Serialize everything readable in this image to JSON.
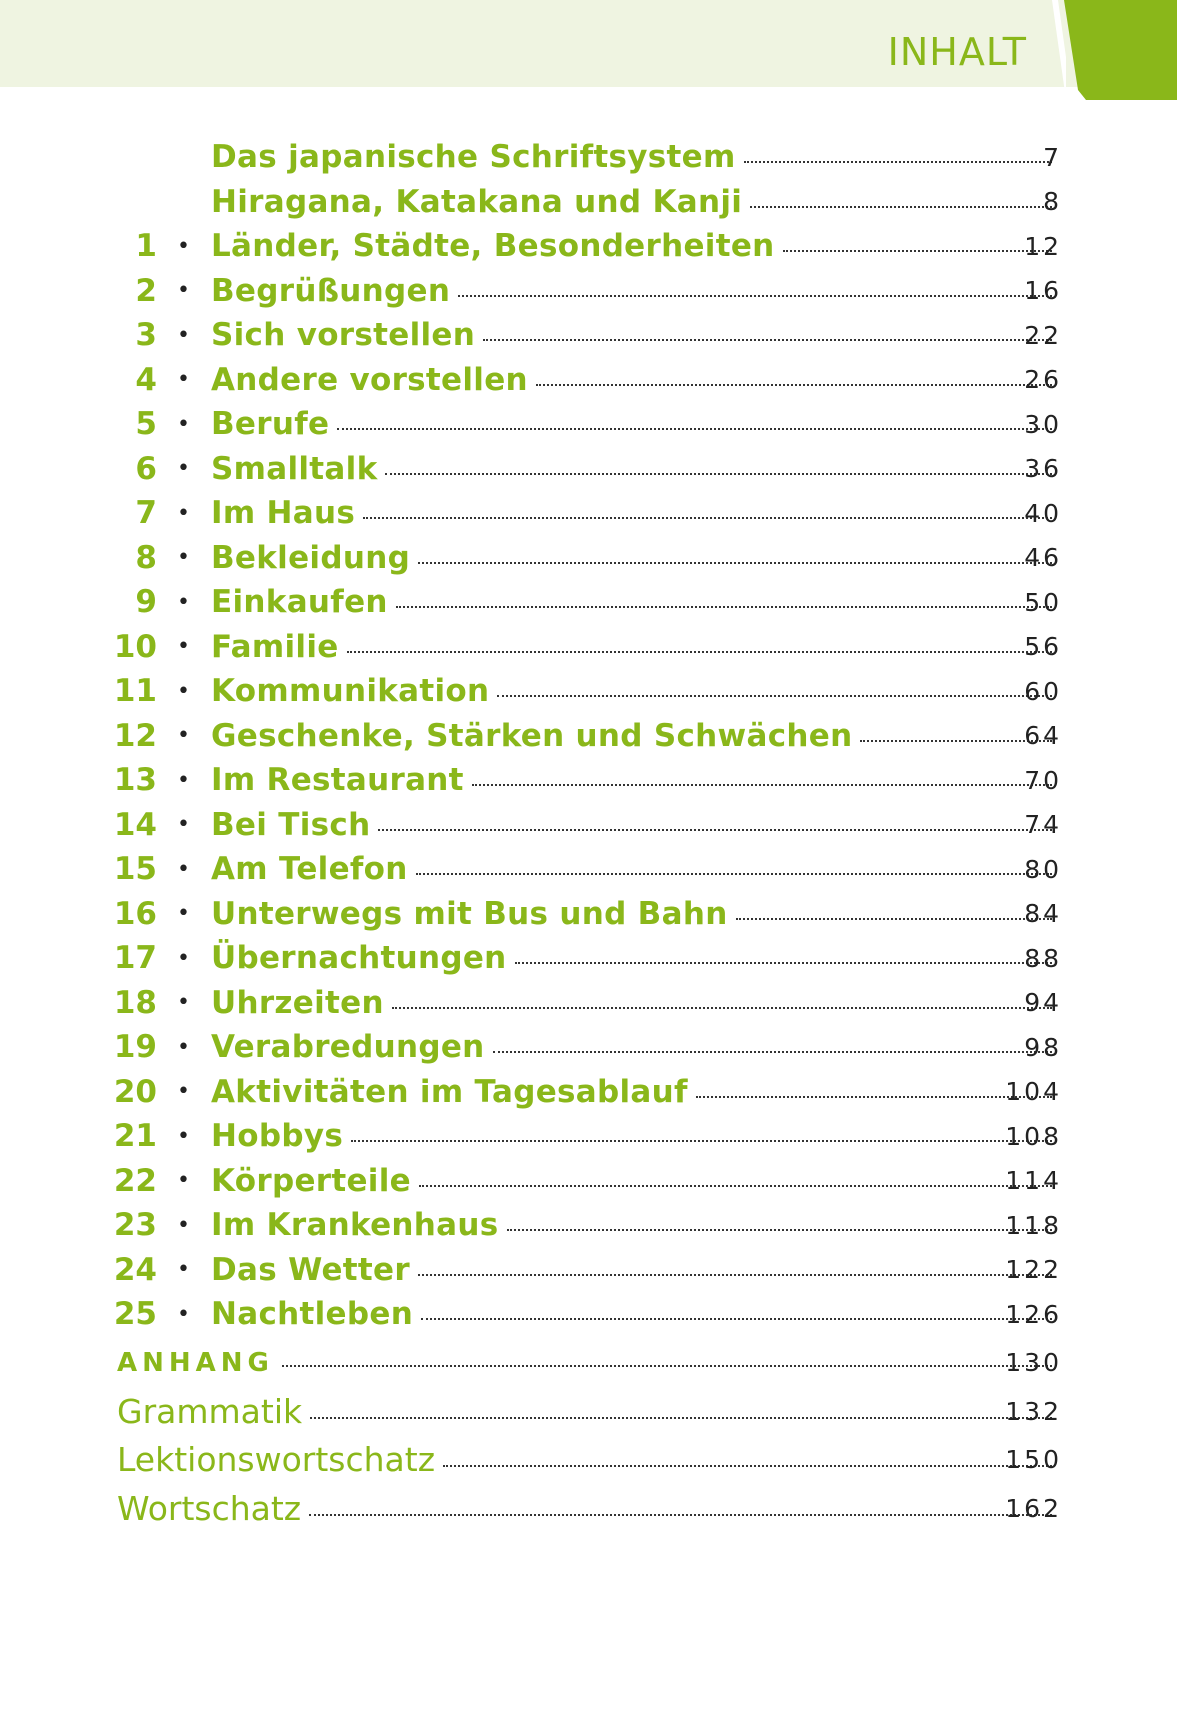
{
  "header": {
    "title": "INHALT",
    "accent": "#8ab71a",
    "band": "#eff4e1"
  },
  "intro": [
    {
      "title": "Das japanische Schriftsystem",
      "page": "7"
    },
    {
      "title": "Hiragana, Katakana und Kanji",
      "page": "8"
    }
  ],
  "lessons": [
    {
      "num": "1",
      "title": "Länder, Städte, Besonderheiten",
      "page": "12"
    },
    {
      "num": "2",
      "title": "Begrüßungen",
      "page": "16"
    },
    {
      "num": "3",
      "title": "Sich vorstellen",
      "page": "22"
    },
    {
      "num": "4",
      "title": "Andere vorstellen",
      "page": "26"
    },
    {
      "num": "5",
      "title": "Berufe",
      "page": "30"
    },
    {
      "num": "6",
      "title": "Smalltalk",
      "page": "36"
    },
    {
      "num": "7",
      "title": "Im Haus",
      "page": "40"
    },
    {
      "num": "8",
      "title": "Bekleidung",
      "page": "46"
    },
    {
      "num": "9",
      "title": "Einkaufen",
      "page": "50"
    },
    {
      "num": "10",
      "title": "Familie",
      "page": "56"
    },
    {
      "num": "11",
      "title": "Kommunikation",
      "page": "60"
    },
    {
      "num": "12",
      "title": "Geschenke, Stärken und Schwächen",
      "page": "64"
    },
    {
      "num": "13",
      "title": "Im Restaurant",
      "page": "70"
    },
    {
      "num": "14",
      "title": "Bei Tisch",
      "page": "74"
    },
    {
      "num": "15",
      "title": "Am Telefon",
      "page": "80"
    },
    {
      "num": "16",
      "title": "Unterwegs mit Bus und Bahn",
      "page": "84"
    },
    {
      "num": "17",
      "title": "Übernachtungen",
      "page": "88"
    },
    {
      "num": "18",
      "title": "Uhrzeiten",
      "page": "94"
    },
    {
      "num": "19",
      "title": "Verabredungen",
      "page": "98"
    },
    {
      "num": "20",
      "title": "Aktivitäten im Tagesablauf",
      "page": "104"
    },
    {
      "num": "21",
      "title": "Hobbys",
      "page": "108"
    },
    {
      "num": "22",
      "title": "Körperteile",
      "page": "114"
    },
    {
      "num": "23",
      "title": "Im Krankenhaus",
      "page": "118"
    },
    {
      "num": "24",
      "title": "Das Wetter",
      "page": "122"
    },
    {
      "num": "25",
      "title": "Nachtleben",
      "page": "126"
    }
  ],
  "bullet": "•",
  "appendix": [
    {
      "title": "ANHANG",
      "page": "130"
    },
    {
      "title": "Grammatik",
      "page": "132"
    },
    {
      "title": "Lektionswortschatz",
      "page": "150"
    },
    {
      "title": "Wortschatz",
      "page": "162"
    }
  ]
}
